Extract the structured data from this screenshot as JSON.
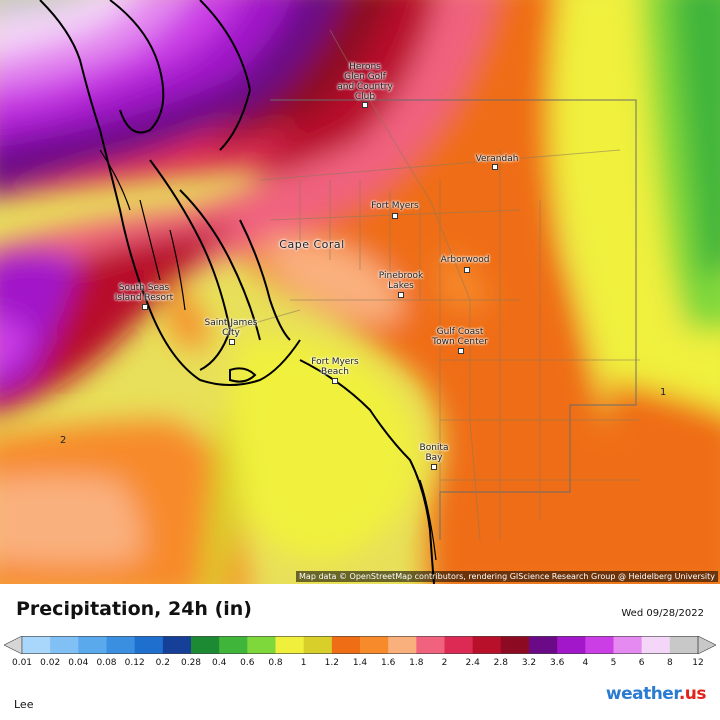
{
  "map": {
    "places": [
      {
        "name": "Herons\nGlen Golf\nand Country\nClub"
      },
      {
        "name": "Verandah"
      },
      {
        "name": "Fort Myers"
      },
      {
        "name": "Cape Coral"
      },
      {
        "name": "Arborwood"
      },
      {
        "name": "Pinebrook\nLakes"
      },
      {
        "name": "South Seas\nIsland Resort"
      },
      {
        "name": "Saint James\nCity"
      },
      {
        "name": "Gulf Coast\nTown Center"
      },
      {
        "name": "Fort Myers\nBeach"
      },
      {
        "name": "Bonita\nBay"
      }
    ],
    "contour_labels": [
      "1",
      "2"
    ],
    "attribution": "Map data © OpenStreetMap contributors, rendering GIScience Research Group @ Heidelberg University"
  },
  "legend": {
    "title": "Precipitation, 24h (in)",
    "date": "Wed 09/28/2022",
    "colors": [
      "#a9d6fb",
      "#80c0f5",
      "#5aa9ec",
      "#3b8fe0",
      "#1f6fcf",
      "#163f97",
      "#1c8a32",
      "#3fb53a",
      "#7fd83b",
      "#f0f03c",
      "#d9cf2a",
      "#ef6d15",
      "#f78a2a",
      "#fab07d",
      "#f0627e",
      "#dd2a55",
      "#b8102a",
      "#8c0a22",
      "#6b0a86",
      "#a117c9",
      "#cb3ee6",
      "#e58af0",
      "#f4d6f8",
      "#c8c8c8"
    ],
    "ticks": [
      "0.01",
      "0.02",
      "0.04",
      "0.08",
      "0.12",
      "0.2",
      "0.28",
      "0.4",
      "0.6",
      "0.8",
      "1",
      "1.2",
      "1.4",
      "1.6",
      "1.8",
      "2",
      "2.4",
      "2.8",
      "3.2",
      "3.6",
      "4",
      "5",
      "6",
      "8",
      "12"
    ],
    "region": "Lee"
  },
  "brand": {
    "main": "weather",
    "tld": ".us"
  }
}
